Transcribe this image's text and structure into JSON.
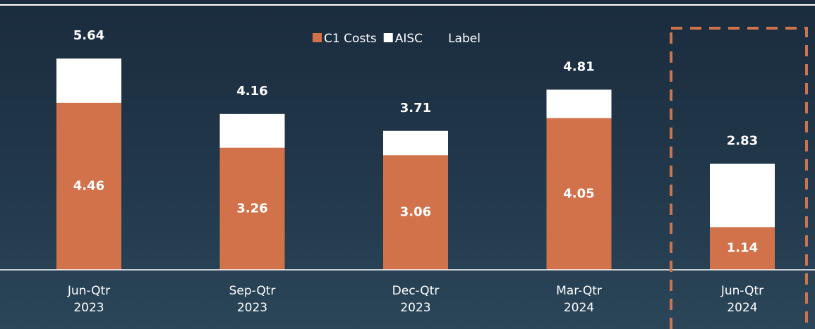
{
  "chart_data": {
    "type": "overlap_bar",
    "categories": [
      "Jun-Qtr 2023",
      "Sep-Qtr 2023",
      "Dec-Qtr 2023",
      "Mar-Qtr 2024",
      "Jun-Qtr 2024"
    ],
    "series": [
      {
        "name": "C1 Costs",
        "color": "#d2724a",
        "values": [
          4.46,
          3.26,
          3.06,
          4.05,
          1.14
        ]
      },
      {
        "name": "AISC",
        "color": "#ffffff",
        "values": [
          5.64,
          4.16,
          3.71,
          4.81,
          2.83
        ]
      },
      {
        "name": "Label",
        "color": null,
        "values": [
          null,
          null,
          null,
          null,
          null
        ]
      }
    ],
    "ylim": [
      0,
      6
    ],
    "highlight_index": 4
  }
}
